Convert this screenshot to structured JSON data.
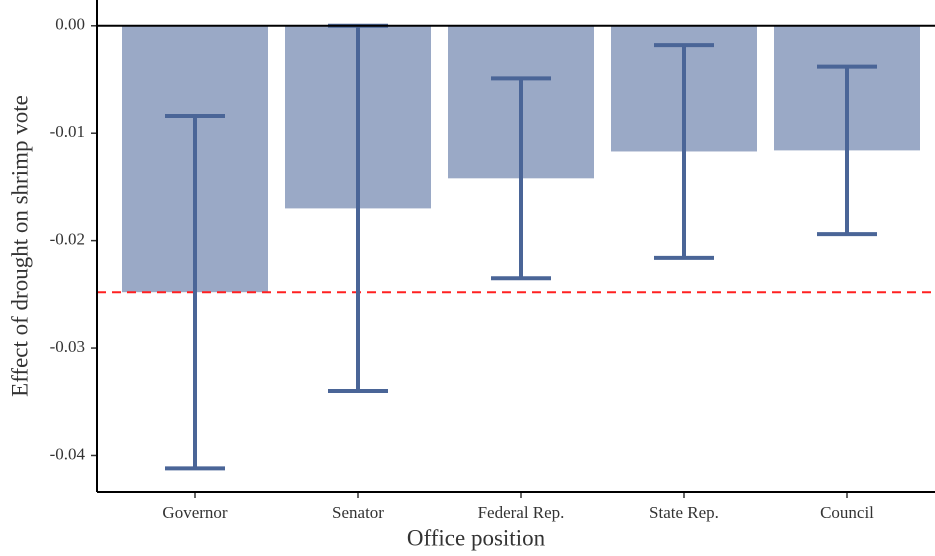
{
  "chart_data": {
    "type": "bar",
    "x_label": "Office position",
    "y_label": "Effect of drought on shrimp vote",
    "categories": [
      "Governor",
      "Senator",
      "Federal Rep.",
      "State Rep.",
      "Council"
    ],
    "values": [
      -0.0248,
      -0.017,
      -0.0142,
      -0.0117,
      -0.0116
    ],
    "errors": [
      0.0164,
      0.017,
      0.0093,
      0.0099,
      0.0078
    ],
    "color": "#9aa9c6",
    "error_color": "#4a6597",
    "reference_line": -0.0248,
    "reference_color": "#ff2020",
    "ylim": [
      -0.0434,
      0.0024
    ],
    "yticks": [
      -0.04,
      -0.03,
      -0.02,
      -0.01,
      {
        "value": 0,
        "label": "0.00"
      }
    ]
  }
}
